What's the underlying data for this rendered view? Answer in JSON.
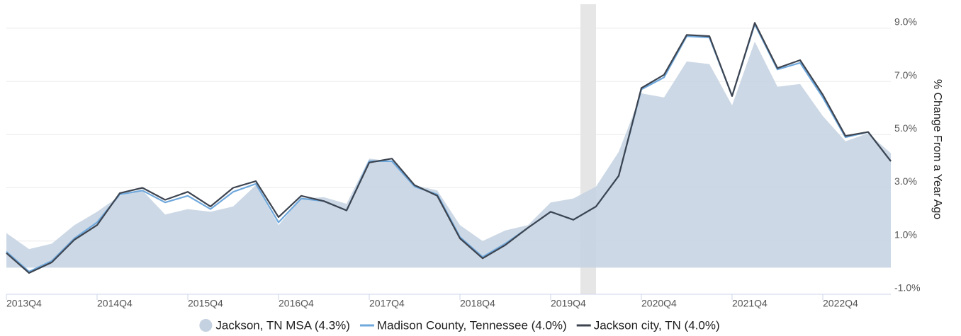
{
  "chart_data": {
    "type": "line",
    "y_axis_label": "% Change From a Year Ago",
    "categories": [
      "2013Q4",
      null,
      null,
      null,
      "2014Q4",
      null,
      null,
      null,
      "2015Q4",
      null,
      null,
      null,
      "2016Q4",
      null,
      null,
      null,
      "2017Q4",
      null,
      null,
      null,
      "2018Q4",
      null,
      null,
      null,
      "2019Q4",
      null,
      null,
      null,
      "2020Q4",
      null,
      null,
      null,
      "2021Q4",
      null,
      null,
      null,
      "2022Q4",
      null,
      null,
      null
    ],
    "series": [
      {
        "name": "Jackson, TN MSA (4.3%)",
        "color": "#c3d1e1",
        "area": true,
        "values": [
          1.3,
          0.7,
          0.9,
          1.6,
          2.1,
          2.7,
          2.9,
          2.0,
          2.2,
          2.1,
          2.3,
          3.1,
          1.6,
          2.6,
          2.65,
          2.4,
          4.1,
          4.0,
          3.1,
          2.9,
          1.6,
          1.0,
          1.4,
          1.6,
          2.45,
          2.6,
          3.05,
          4.35,
          6.55,
          6.4,
          7.75,
          7.65,
          6.1,
          8.5,
          6.8,
          6.9,
          5.7,
          4.75,
          5.05,
          4.3
        ]
      },
      {
        "name": "Madison County, Tennessee (4.0%)",
        "color": "#6fa8dc",
        "values": [
          0.6,
          -0.15,
          0.25,
          1.1,
          1.7,
          2.75,
          2.9,
          2.45,
          2.7,
          2.2,
          2.85,
          3.15,
          1.7,
          2.6,
          2.5,
          2.15,
          4.0,
          4.0,
          3.05,
          2.75,
          1.15,
          0.4,
          0.9,
          1.5,
          2.1,
          1.8,
          2.3,
          3.45,
          6.7,
          7.15,
          8.7,
          8.65,
          6.45,
          9.15,
          7.45,
          7.7,
          6.4,
          4.9,
          5.1,
          4.0
        ]
      },
      {
        "name": "Jackson city, TN (4.0%)",
        "color": "#3d4450",
        "values": [
          0.55,
          -0.2,
          0.2,
          1.05,
          1.6,
          2.8,
          3.0,
          2.55,
          2.85,
          2.3,
          3.0,
          3.25,
          1.9,
          2.7,
          2.5,
          2.15,
          3.95,
          4.1,
          3.1,
          2.7,
          1.1,
          0.35,
          0.85,
          1.5,
          2.1,
          1.8,
          2.3,
          3.45,
          6.75,
          7.25,
          8.75,
          8.7,
          6.45,
          9.2,
          7.5,
          7.8,
          6.5,
          4.95,
          5.1,
          4.0
        ]
      }
    ],
    "ylim": [
      -1,
      9.9
    ],
    "yticks": [
      {
        "value": -1,
        "label": "-1.0%"
      },
      {
        "value": 1,
        "label": "1.0%"
      },
      {
        "value": 3,
        "label": "3.0%"
      },
      {
        "value": 5,
        "label": "5.0%"
      },
      {
        "value": 7,
        "label": "7.0%"
      },
      {
        "value": 9,
        "label": "9.0%"
      }
    ],
    "grid": true,
    "legend": "bottom"
  }
}
